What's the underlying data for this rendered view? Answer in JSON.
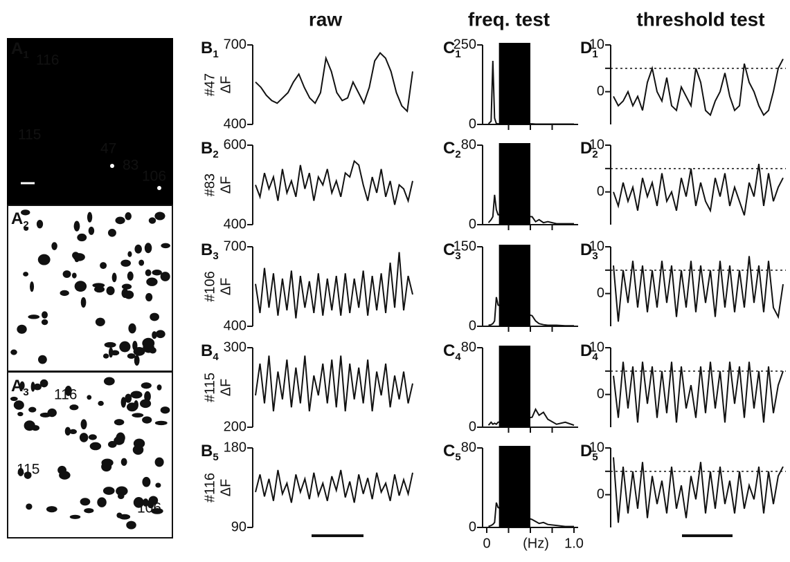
{
  "column_titles": [
    "raw",
    "freq. test",
    "threshold test"
  ],
  "images": [
    {
      "letter": "A",
      "index": "1",
      "labels": [
        "116",
        "115",
        "47",
        "83",
        "106"
      ]
    },
    {
      "letter": "A",
      "index": "2",
      "labels": []
    },
    {
      "letter": "A",
      "index": "3",
      "labels": [
        "116",
        "115",
        "106"
      ]
    }
  ],
  "chart_data": [
    {
      "type": "trace",
      "letter": "B",
      "index": "1",
      "cell": "#47",
      "ylabel": "ΔF",
      "ylim": [
        400,
        700
      ],
      "yticks": [
        400,
        700
      ],
      "color": "#111",
      "values": [
        560,
        540,
        510,
        490,
        480,
        500,
        520,
        560,
        590,
        540,
        500,
        480,
        520,
        650,
        600,
        520,
        490,
        500,
        560,
        520,
        480,
        540,
        640,
        670,
        650,
        600,
        520,
        470,
        450,
        600
      ]
    },
    {
      "type": "trace",
      "letter": "B",
      "index": "2",
      "cell": "#83",
      "ylabel": "ΔF",
      "ylim": [
        400,
        600
      ],
      "yticks": [
        400,
        600
      ],
      "color": "#111",
      "values": [
        500,
        470,
        530,
        490,
        520,
        460,
        540,
        480,
        510,
        470,
        550,
        490,
        530,
        460,
        520,
        500,
        540,
        480,
        510,
        470,
        530,
        520,
        560,
        550,
        500,
        460,
        520,
        480,
        540,
        470,
        510,
        450,
        500,
        490,
        460,
        510
      ]
    },
    {
      "type": "trace",
      "letter": "B",
      "index": "3",
      "cell": "#106",
      "ylabel": "ΔF",
      "ylim": [
        400,
        700
      ],
      "yticks": [
        400,
        700
      ],
      "color": "#111",
      "values": [
        560,
        450,
        620,
        470,
        600,
        440,
        580,
        460,
        610,
        430,
        590,
        470,
        570,
        450,
        600,
        440,
        580,
        460,
        590,
        440,
        600,
        450,
        580,
        470,
        610,
        440,
        590,
        460,
        600,
        450,
        640,
        470,
        680,
        460,
        590,
        520
      ]
    },
    {
      "type": "trace",
      "letter": "B",
      "index": "4",
      "cell": "#115",
      "ylabel": "ΔF",
      "ylim": [
        200,
        300
      ],
      "yticks": [
        200,
        300
      ],
      "color": "#111",
      "values": [
        240,
        280,
        230,
        290,
        220,
        270,
        235,
        285,
        225,
        275,
        230,
        290,
        220,
        265,
        240,
        280,
        230,
        285,
        225,
        290,
        220,
        280,
        235,
        275,
        230,
        285,
        220,
        270,
        240,
        280,
        225,
        265,
        235,
        270,
        230,
        255
      ]
    },
    {
      "type": "trace",
      "letter": "B",
      "index": "5",
      "cell": "#116",
      "ylabel": "ΔF",
      "ylim": [
        90,
        180
      ],
      "yticks": [
        90,
        180
      ],
      "color": "#111",
      "values": [
        130,
        150,
        125,
        145,
        120,
        155,
        128,
        140,
        118,
        150,
        130,
        145,
        122,
        152,
        126,
        140,
        120,
        148,
        132,
        155,
        124,
        142,
        118,
        150,
        128,
        146,
        122,
        152,
        130,
        140,
        120,
        150,
        126,
        144,
        128,
        152
      ]
    },
    {
      "type": "spectrum",
      "letter": "C",
      "index": "1",
      "ylim": [
        0,
        250
      ],
      "yticks": [
        0,
        250
      ],
      "xlim": [
        0,
        1
      ],
      "band": [
        0.14,
        0.5
      ],
      "color": "#111",
      "x": [
        0.02,
        0.05,
        0.07,
        0.09,
        0.11,
        0.13,
        0.52,
        0.56,
        0.6,
        0.65,
        0.7,
        0.8,
        0.9,
        1.0
      ],
      "values": [
        2,
        10,
        200,
        20,
        3,
        2,
        2,
        1,
        1,
        1,
        1,
        1,
        1,
        1
      ]
    },
    {
      "type": "spectrum",
      "letter": "C",
      "index": "2",
      "ylim": [
        0,
        80
      ],
      "yticks": [
        0,
        80
      ],
      "xlim": [
        0,
        1
      ],
      "band": [
        0.14,
        0.5
      ],
      "color": "#111",
      "x": [
        0.02,
        0.05,
        0.07,
        0.09,
        0.11,
        0.13,
        0.52,
        0.56,
        0.6,
        0.65,
        0.7,
        0.8,
        0.9,
        1.0
      ],
      "values": [
        2,
        5,
        8,
        30,
        15,
        10,
        8,
        3,
        5,
        2,
        3,
        1,
        1,
        1
      ]
    },
    {
      "type": "spectrum",
      "letter": "C",
      "index": "3",
      "ylim": [
        0,
        150
      ],
      "yticks": [
        0,
        150
      ],
      "xlim": [
        0,
        1
      ],
      "band": [
        0.14,
        0.5
      ],
      "color": "#111",
      "x": [
        0.02,
        0.05,
        0.07,
        0.09,
        0.11,
        0.13,
        0.52,
        0.56,
        0.6,
        0.65,
        0.7,
        0.8,
        0.9,
        1.0
      ],
      "values": [
        2,
        3,
        5,
        10,
        55,
        40,
        20,
        10,
        5,
        3,
        2,
        2,
        1,
        1
      ]
    },
    {
      "type": "spectrum",
      "letter": "C",
      "index": "4",
      "ylim": [
        0,
        80
      ],
      "yticks": [
        0,
        80
      ],
      "xlim": [
        0,
        1
      ],
      "band": [
        0.14,
        0.5
      ],
      "color": "#111",
      "x": [
        0.02,
        0.05,
        0.07,
        0.09,
        0.11,
        0.13,
        0.52,
        0.56,
        0.6,
        0.65,
        0.7,
        0.8,
        0.9,
        1.0
      ],
      "values": [
        2,
        5,
        3,
        4,
        3,
        5,
        10,
        18,
        12,
        15,
        8,
        3,
        5,
        2
      ]
    },
    {
      "type": "spectrum",
      "letter": "C",
      "index": "5",
      "ylim": [
        0,
        80
      ],
      "yticks": [
        0,
        80
      ],
      "xlim": [
        0,
        1
      ],
      "band": [
        0.14,
        0.5
      ],
      "color": "#111",
      "xticks": [
        0,
        {
          "value": 1,
          "label": "1.0"
        }
      ],
      "xlabel": "(Hz)",
      "x": [
        0.02,
        0.05,
        0.07,
        0.09,
        0.11,
        0.13,
        0.52,
        0.56,
        0.6,
        0.65,
        0.7,
        0.8,
        0.9,
        1.0
      ],
      "values": [
        1,
        2,
        3,
        5,
        25,
        20,
        8,
        6,
        4,
        5,
        3,
        2,
        1,
        1
      ]
    },
    {
      "type": "threshold",
      "letter": "D",
      "index": "1",
      "ylim": [
        -7,
        10
      ],
      "yticks": [
        0,
        10
      ],
      "threshold": 5,
      "color": "#111",
      "values": [
        -1,
        -3,
        -2,
        0,
        -3,
        -1,
        -4,
        2,
        5,
        0,
        -2,
        3,
        -3,
        -4,
        1,
        -1,
        -3,
        5,
        2,
        -4,
        -5,
        -2,
        0,
        4,
        -1,
        -4,
        -3,
        6,
        2,
        0,
        -3,
        -5,
        -4,
        0,
        5,
        7
      ]
    },
    {
      "type": "threshold",
      "letter": "D",
      "index": "2",
      "ylim": [
        -7,
        10
      ],
      "yticks": [
        0,
        10
      ],
      "threshold": 5,
      "color": "#111",
      "values": [
        0,
        -3,
        2,
        -2,
        1,
        -4,
        3,
        -1,
        2,
        -3,
        4,
        -2,
        0,
        -4,
        3,
        -1,
        5,
        -3,
        2,
        -2,
        -4,
        3,
        -1,
        4,
        -3,
        1,
        -2,
        -5,
        2,
        -1,
        6,
        -3,
        4,
        -2,
        1,
        3
      ]
    },
    {
      "type": "threshold",
      "letter": "D",
      "index": "3",
      "ylim": [
        -7,
        10
      ],
      "yticks": [
        0,
        10
      ],
      "threshold": 5,
      "color": "#111",
      "values": [
        6,
        -6,
        5,
        -2,
        7,
        -3,
        6,
        -4,
        5,
        -3,
        7,
        -2,
        6,
        -5,
        5,
        -3,
        7,
        -4,
        6,
        -2,
        5,
        -5,
        7,
        -3,
        6,
        -4,
        5,
        -3,
        8,
        -2,
        6,
        -4,
        7,
        -3,
        -5,
        2
      ]
    },
    {
      "type": "threshold",
      "letter": "D",
      "index": "4",
      "ylim": [
        -7,
        10
      ],
      "yticks": [
        0,
        10
      ],
      "threshold": 5,
      "color": "#111",
      "values": [
        4,
        -5,
        7,
        -3,
        6,
        -6,
        7,
        -2,
        6,
        -5,
        5,
        -4,
        7,
        -6,
        6,
        -3,
        2,
        -5,
        6,
        -4,
        7,
        -3,
        5,
        -6,
        7,
        -2,
        6,
        -5,
        7,
        -3,
        5,
        -6,
        6,
        -4,
        2,
        5
      ]
    },
    {
      "type": "threshold",
      "letter": "D",
      "index": "5",
      "ylim": [
        -7,
        10
      ],
      "yticks": [
        0,
        10
      ],
      "threshold": 5,
      "color": "#111",
      "values": [
        8,
        -6,
        6,
        -4,
        5,
        -3,
        7,
        -5,
        4,
        -2,
        3,
        -4,
        6,
        -3,
        2,
        -5,
        4,
        -1,
        7,
        -4,
        5,
        -3,
        6,
        -2,
        3,
        -4,
        5,
        -3,
        2,
        -1,
        6,
        -4,
        5,
        -2,
        4,
        6
      ]
    }
  ]
}
